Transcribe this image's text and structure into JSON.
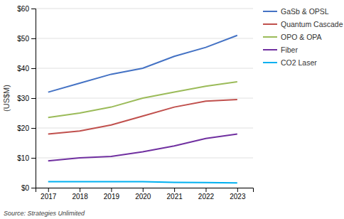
{
  "chart_data": {
    "type": "line",
    "ylabel": "(US$M)",
    "annotations": [
      "Source: Strategies Unlimited"
    ],
    "x": [
      2017,
      2018,
      2019,
      2020,
      2021,
      2022,
      2023
    ],
    "xlim": [
      2016.6,
      2023.5
    ],
    "xticks": [
      2017,
      2018,
      2019,
      2020,
      2021,
      2022,
      2023
    ],
    "ylim": [
      0,
      60
    ],
    "yticks": [
      {
        "value": 0,
        "label": "$0"
      },
      {
        "value": 10,
        "label": "$10"
      },
      {
        "value": 20,
        "label": "$20"
      },
      {
        "value": 30,
        "label": "$30"
      },
      {
        "value": 40,
        "label": "$40"
      },
      {
        "value": 50,
        "label": "$50"
      },
      {
        "value": 60,
        "label": "$60"
      }
    ],
    "grid": true,
    "legend": "right",
    "series": [
      {
        "name": "GaSb & OPSL",
        "color": "#4472C4",
        "values": [
          32,
          35,
          38,
          40,
          44,
          47,
          51
        ]
      },
      {
        "name": "Quantum Cascade",
        "color": "#C0504D",
        "values": [
          18,
          19,
          21,
          24,
          27,
          29,
          29.5
        ]
      },
      {
        "name": "OPO & OPA",
        "color": "#9BBB59",
        "values": [
          23.5,
          25,
          27,
          30,
          32,
          34,
          35.5
        ]
      },
      {
        "name": "Fiber",
        "color": "#7030A0",
        "values": [
          9,
          10,
          10.5,
          12,
          14,
          16.5,
          18
        ]
      },
      {
        "name": "CO2 Laser",
        "color": "#00B0F0",
        "values": [
          2.0,
          2.0,
          2.0,
          2.0,
          1.8,
          1.7,
          1.6
        ]
      }
    ]
  }
}
